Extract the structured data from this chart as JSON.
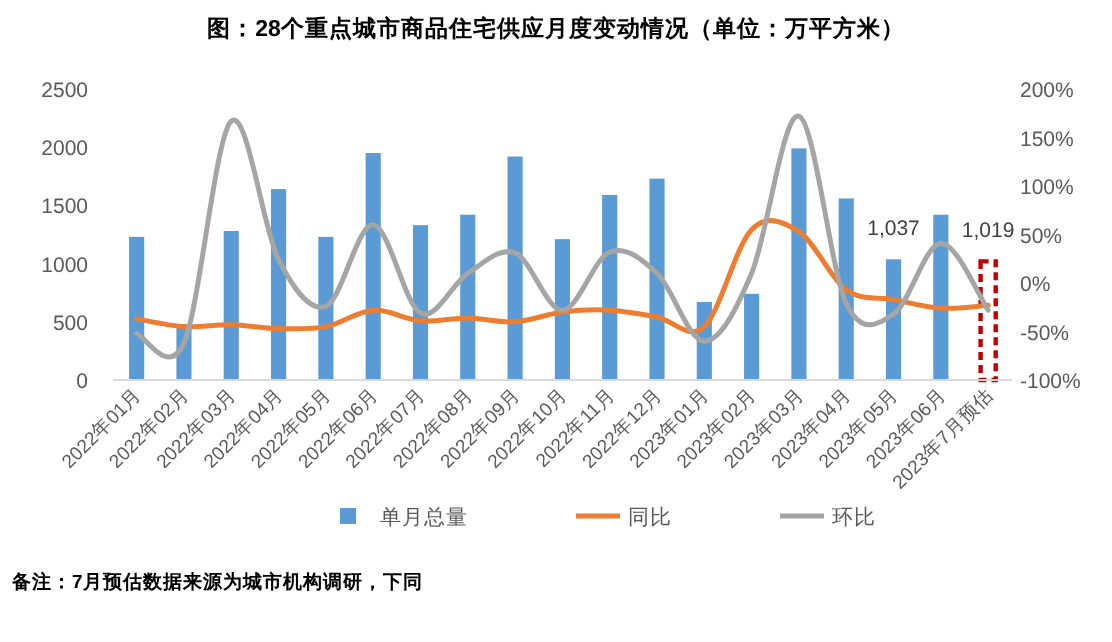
{
  "chart_data": {
    "type": "bar",
    "title": "图：28个重点城市商品住宅供应月度变动情况（单位：万平方米）",
    "categories": [
      "2022年01月",
      "2022年02月",
      "2022年03月",
      "2022年04月",
      "2022年05月",
      "2022年06月",
      "2022年07月",
      "2022年08月",
      "2022年09月",
      "2022年10月",
      "2022年11月",
      "2022年12月",
      "2023年01月",
      "2023年02月",
      "2023年03月",
      "2023年04月",
      "2023年05月",
      "2023年06月",
      "2023年7月预估"
    ],
    "series": [
      {
        "name": "单月总量",
        "color": "#5b9bd5",
        "colors": [
          "#5b9bd5",
          "#5b9bd5",
          "#5b9bd5",
          "#5b9bd5",
          "#5b9bd5",
          "#5b9bd5",
          "#5b9bd5",
          "#5b9bd5",
          "#5b9bd5",
          "#5b9bd5",
          "#5b9bd5",
          "#5b9bd5",
          "#5b9bd5",
          "#5b9bd5",
          "#5b9bd5",
          "#5b9bd5",
          "#5b9bd5",
          "#5b9bd5",
          "#c00000"
        ],
        "values": [
          1230,
          480,
          1280,
          1640,
          1230,
          1950,
          1330,
          1420,
          1920,
          1210,
          1590,
          1730,
          670,
          740,
          1990,
          1560,
          1037,
          1420,
          1019
        ],
        "value_labels": [
          null,
          null,
          null,
          null,
          null,
          null,
          null,
          null,
          null,
          null,
          null,
          null,
          null,
          null,
          null,
          null,
          "1,037",
          null,
          "1,019"
        ]
      },
      {
        "name": "同比",
        "type": "line",
        "axis": "y2",
        "color": "#ed7d31",
        "values": [
          -37,
          -45,
          -43,
          -47,
          -45,
          -28,
          -39,
          -36,
          -40,
          -30,
          -28,
          -35,
          -45,
          55,
          53,
          -7,
          -17,
          -26,
          -23
        ]
      },
      {
        "name": "环比",
        "type": "line",
        "axis": "y2",
        "color": "#a5a5a5",
        "values": [
          -52,
          -62,
          167,
          24,
          -24,
          60,
          -31,
          10,
          31,
          -28,
          32,
          10,
          -60,
          10,
          172,
          -21,
          -32,
          41,
          -28
        ]
      }
    ],
    "ylim": [
      0,
      2500
    ],
    "yticks": [
      0,
      500,
      1000,
      1500,
      2000,
      2500
    ],
    "y2lim": [
      -100,
      200
    ],
    "y2ticks": [
      {
        "value": -100,
        "label": "-100%"
      },
      {
        "value": -50,
        "label": "-50%"
      },
      {
        "value": 0,
        "label": "0%"
      },
      {
        "value": 50,
        "label": "50%"
      },
      {
        "value": 100,
        "label": "100%"
      },
      {
        "value": 150,
        "label": "150%"
      },
      {
        "value": 200,
        "label": "200%"
      }
    ],
    "legend": "bottom",
    "marker": "none",
    "line_style": "solid",
    "annotations": [
      "备注：7月预估数据来源为城市机构调研，下同"
    ]
  }
}
